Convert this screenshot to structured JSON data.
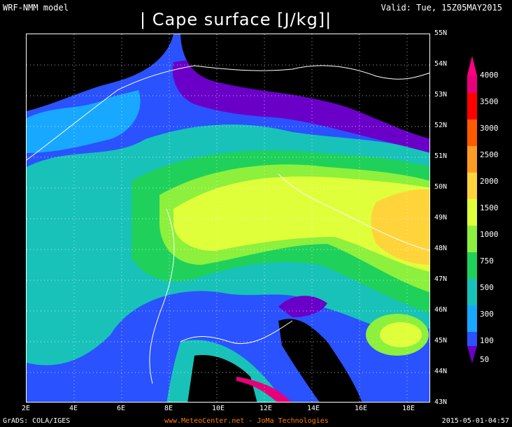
{
  "header": {
    "model": "WRF-NMM model",
    "valid": "Valid: Tue, 15Z05MAY2015",
    "title": "| Cape surface [J/kg]|"
  },
  "map": {
    "lat_labels": [
      "55N",
      "54N",
      "53N",
      "52N",
      "51N",
      "50N",
      "49N",
      "48N",
      "47N",
      "46N",
      "45N",
      "44N",
      "43N"
    ],
    "lon_labels": [
      "2E",
      "4E",
      "6E",
      "8E",
      "10E",
      "12E",
      "14E",
      "16E",
      "18E"
    ]
  },
  "legend": {
    "levels": [
      "4000",
      "3500",
      "3000",
      "2500",
      "2000",
      "1500",
      "1000",
      "750",
      "500",
      "300",
      "100",
      "50"
    ],
    "colors": [
      "#e8007a",
      "#ff0000",
      "#ff5a00",
      "#ff9a24",
      "#ffd43a",
      "#dfff3a",
      "#8cf03c",
      "#1fd15a",
      "#18c2b8",
      "#18a8ff",
      "#2a52ff",
      "#6a00c8"
    ]
  },
  "footer": {
    "left": "GrADS: COLA/IGES",
    "middle": "www.MeteoCenter.net  -  JoMa Technologies",
    "right": "2015-05-01-04:57"
  }
}
